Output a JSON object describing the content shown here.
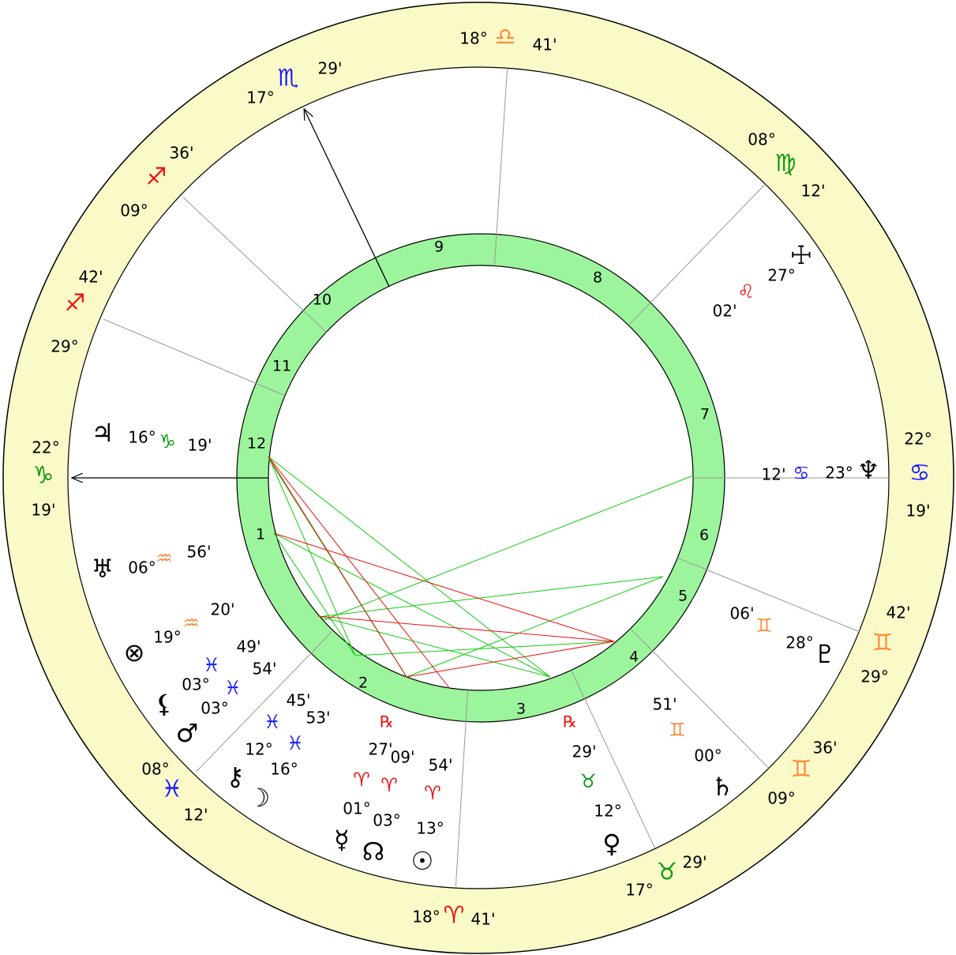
{
  "cusps": [
    {
      "degree": "18°",
      "sign": "♎",
      "minutes": "41'",
      "color": "#ff8c3c"
    },
    {
      "degree": "17°",
      "sign": "♏",
      "minutes": "29'",
      "color": "#1a1aff"
    },
    {
      "degree": "09°",
      "sign": "♐",
      "minutes": "36'",
      "color": "#ee1111"
    },
    {
      "degree": "29°",
      "sign": "♐",
      "minutes": "42'",
      "color": "#ee1111"
    },
    {
      "degree": "22°",
      "sign": "♑",
      "minutes": "19'",
      "color": "#119911"
    },
    {
      "degree": "08°",
      "sign": "♓",
      "minutes": "12'",
      "color": "#1a1aff"
    },
    {
      "degree": "18°",
      "sign": "♈",
      "minutes": "41'",
      "color": "#ee1111"
    },
    {
      "degree": "17°",
      "sign": "♉",
      "minutes": "29'",
      "color": "#119911"
    },
    {
      "degree": "09°",
      "sign": "♊",
      "minutes": "36'",
      "color": "#ff8c3c"
    },
    {
      "degree": "29°",
      "sign": "♊",
      "minutes": "42'",
      "color": "#ff8c3c"
    },
    {
      "degree": "22°",
      "sign": "♋",
      "minutes": "19'",
      "color": "#1a1aff"
    },
    {
      "degree": "08°",
      "sign": "♍",
      "minutes": "12'",
      "color": "#119911"
    }
  ],
  "houses": [
    "1",
    "2",
    "3",
    "4",
    "5",
    "6",
    "7",
    "8",
    "9",
    "10",
    "11",
    "12"
  ],
  "planets": [
    {
      "glyph": "♃",
      "degree": "16°",
      "sign": "♑",
      "minutes": "19'",
      "color": "#119911"
    },
    {
      "glyph": "♅",
      "degree": "06°",
      "sign": "♒",
      "minutes": "56'",
      "color": "#ff8c3c"
    },
    {
      "glyph": "⊗",
      "degree": "19°",
      "sign": "♒",
      "minutes": "20'",
      "color": "#ff8c3c"
    },
    {
      "glyph": "⚸",
      "degree": "03°",
      "sign": "♓",
      "minutes": "49'",
      "color": "#1a1aff"
    },
    {
      "glyph": "♂",
      "degree": "03°",
      "sign": "♓",
      "minutes": "54'",
      "color": "#1a1aff"
    },
    {
      "glyph": "⚷",
      "degree": "12°",
      "sign": "♓",
      "minutes": "45'",
      "color": "#1a1aff"
    },
    {
      "glyph": "☽",
      "degree": "16°",
      "sign": "♓",
      "minutes": "53'",
      "color": "#1a1aff"
    },
    {
      "glyph": "☿",
      "degree": "01°",
      "sign": "♈",
      "minutes": "27'",
      "color": "#ee1111",
      "retrograde": "℞"
    },
    {
      "glyph": "☊",
      "degree": "03°",
      "sign": "♈",
      "minutes": "09'",
      "color": "#ee1111"
    },
    {
      "glyph": "☉",
      "degree": "13°",
      "sign": "♈",
      "minutes": "54'",
      "color": "#ee1111"
    },
    {
      "glyph": "♀",
      "degree": "12°",
      "sign": "♉",
      "minutes": "29'",
      "color": "#119911",
      "retrograde": "℞"
    },
    {
      "glyph": "♄",
      "degree": "00°",
      "sign": "♊",
      "minutes": "51'",
      "color": "#ff8c3c"
    },
    {
      "glyph": "♇",
      "degree": "28°",
      "sign": "♊",
      "minutes": "06'",
      "color": "#ff8c3c"
    },
    {
      "glyph": "♆",
      "degree": "23°",
      "sign": "♋",
      "minutes": "12'",
      "color": "#1a1aff"
    },
    {
      "glyph": "☩",
      "degree": "27°",
      "sign": "♌",
      "minutes": "02'",
      "color": "#ee1111"
    }
  ]
}
